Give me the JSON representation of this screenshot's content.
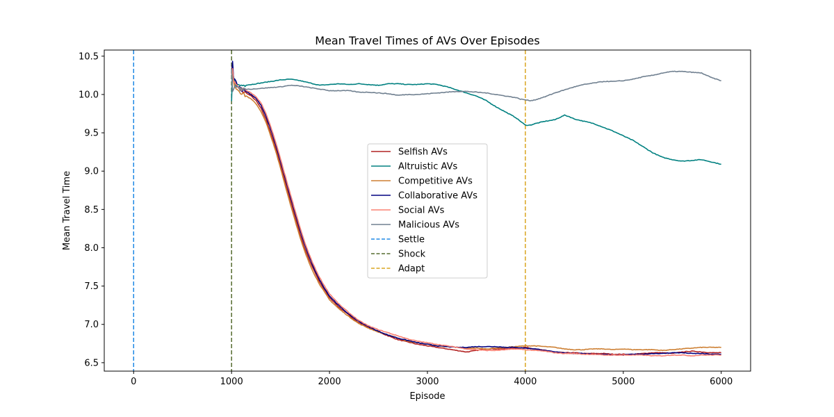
{
  "chart_data": {
    "type": "line",
    "title": "Mean Travel Times of AVs Over Episodes",
    "xlabel": "Episode",
    "ylabel": "Mean Travel Time",
    "xlim": [
      -300,
      6300
    ],
    "ylim": [
      6.39,
      10.58
    ],
    "xticks": [
      0,
      1000,
      2000,
      3000,
      4000,
      5000,
      6000
    ],
    "xtick_labels": [
      "0",
      "1000",
      "2000",
      "3000",
      "4000",
      "5000",
      "6000"
    ],
    "yticks": [
      6.5,
      7.0,
      7.5,
      8.0,
      8.5,
      9.0,
      9.5,
      10.0,
      10.5
    ],
    "ytick_labels": [
      "6.5",
      "7.0",
      "7.5",
      "8.0",
      "8.5",
      "9.0",
      "9.5",
      "10.0",
      "10.5"
    ],
    "grid": false,
    "legend_position": "center",
    "series": [
      {
        "name": "Selfish AVs",
        "color": "#b22222",
        "x": [
          1000,
          1010,
          1020,
          1040,
          1060,
          1080,
          1100,
          1150,
          1200,
          1250,
          1300,
          1350,
          1400,
          1450,
          1500,
          1550,
          1600,
          1650,
          1700,
          1750,
          1800,
          1850,
          1900,
          1950,
          2000,
          2100,
          2200,
          2300,
          2400,
          2500,
          2600,
          2700,
          2800,
          2900,
          3000,
          3100,
          3200,
          3300,
          3400,
          3500,
          3600,
          3700,
          3800,
          3900,
          4000,
          4100,
          4200,
          4300,
          4400,
          4500,
          4600,
          4700,
          4800,
          4900,
          5000,
          5100,
          5200,
          5300,
          5400,
          5500,
          5600,
          5700,
          5800,
          5900,
          6000
        ],
        "y": [
          10.3,
          10.4,
          10.2,
          10.15,
          10.1,
          10.08,
          10.05,
          10.02,
          9.98,
          9.92,
          9.82,
          9.68,
          9.5,
          9.3,
          9.08,
          8.85,
          8.62,
          8.4,
          8.18,
          7.98,
          7.82,
          7.68,
          7.55,
          7.45,
          7.35,
          7.22,
          7.12,
          7.02,
          6.96,
          6.9,
          6.85,
          6.8,
          6.77,
          6.74,
          6.72,
          6.7,
          6.68,
          6.66,
          6.64,
          6.66,
          6.68,
          6.68,
          6.68,
          6.69,
          6.7,
          6.68,
          6.66,
          6.64,
          6.63,
          6.63,
          6.62,
          6.62,
          6.62,
          6.61,
          6.61,
          6.61,
          6.62,
          6.63,
          6.63,
          6.62,
          6.64,
          6.65,
          6.64,
          6.63,
          6.63
        ]
      },
      {
        "name": "Altruistic AVs",
        "color": "#008080",
        "x": [
          1000,
          1010,
          1030,
          1060,
          1100,
          1200,
          1300,
          1400,
          1500,
          1600,
          1700,
          1800,
          1900,
          2000,
          2100,
          2200,
          2300,
          2400,
          2500,
          2600,
          2700,
          2800,
          2900,
          3000,
          3100,
          3200,
          3300,
          3400,
          3500,
          3600,
          3700,
          3800,
          3900,
          4000,
          4050,
          4100,
          4200,
          4300,
          4350,
          4400,
          4450,
          4500,
          4600,
          4700,
          4800,
          4900,
          5000,
          5100,
          5200,
          5300,
          5400,
          5500,
          5600,
          5700,
          5800,
          5900,
          6000
        ],
        "y": [
          9.9,
          10.3,
          10.15,
          10.12,
          10.12,
          10.13,
          10.15,
          10.17,
          10.19,
          10.2,
          10.18,
          10.15,
          10.12,
          10.13,
          10.14,
          10.13,
          10.14,
          10.13,
          10.12,
          10.14,
          10.14,
          10.13,
          10.13,
          10.14,
          10.13,
          10.1,
          10.06,
          10.02,
          9.98,
          9.92,
          9.84,
          9.77,
          9.7,
          9.6,
          9.6,
          9.62,
          9.65,
          9.67,
          9.7,
          9.73,
          9.71,
          9.68,
          9.65,
          9.62,
          9.57,
          9.52,
          9.46,
          9.4,
          9.32,
          9.24,
          9.18,
          9.15,
          9.13,
          9.14,
          9.15,
          9.12,
          9.09
        ]
      },
      {
        "name": "Competitive AVs",
        "color": "#cd7f32",
        "x": [
          1000,
          1010,
          1020,
          1040,
          1060,
          1080,
          1100,
          1150,
          1200,
          1250,
          1300,
          1350,
          1400,
          1450,
          1500,
          1550,
          1600,
          1650,
          1700,
          1750,
          1800,
          1850,
          1900,
          1950,
          2000,
          2100,
          2200,
          2300,
          2400,
          2500,
          2600,
          2700,
          2800,
          2900,
          3000,
          3100,
          3200,
          3300,
          3400,
          3500,
          3600,
          3700,
          3800,
          3900,
          4000,
          4100,
          4200,
          4300,
          4400,
          4500,
          4600,
          4700,
          4800,
          4900,
          5000,
          5100,
          5200,
          5300,
          5400,
          5500,
          5600,
          5700,
          5800,
          5900,
          6000
        ],
        "y": [
          10.32,
          10.38,
          10.15,
          10.1,
          10.07,
          10.05,
          10.02,
          9.98,
          9.94,
          9.88,
          9.78,
          9.64,
          9.46,
          9.26,
          9.04,
          8.8,
          8.57,
          8.35,
          8.13,
          7.94,
          7.78,
          7.64,
          7.52,
          7.42,
          7.32,
          7.2,
          7.1,
          7.01,
          6.95,
          6.9,
          6.86,
          6.82,
          6.78,
          6.76,
          6.74,
          6.72,
          6.71,
          6.7,
          6.69,
          6.69,
          6.68,
          6.69,
          6.7,
          6.71,
          6.72,
          6.72,
          6.71,
          6.7,
          6.68,
          6.67,
          6.67,
          6.68,
          6.68,
          6.67,
          6.68,
          6.67,
          6.67,
          6.67,
          6.66,
          6.67,
          6.68,
          6.69,
          6.7,
          6.7,
          6.7
        ]
      },
      {
        "name": "Collaborative AVs",
        "color": "#000080",
        "x": [
          1000,
          1010,
          1020,
          1040,
          1060,
          1080,
          1100,
          1150,
          1200,
          1250,
          1300,
          1350,
          1400,
          1450,
          1500,
          1550,
          1600,
          1650,
          1700,
          1750,
          1800,
          1850,
          1900,
          1950,
          2000,
          2100,
          2200,
          2300,
          2400,
          2500,
          2600,
          2700,
          2800,
          2900,
          3000,
          3100,
          3200,
          3300,
          3400,
          3500,
          3600,
          3700,
          3800,
          3900,
          4000,
          4100,
          4200,
          4300,
          4400,
          4500,
          4600,
          4700,
          4800,
          4900,
          5000,
          5100,
          5200,
          5300,
          5400,
          5500,
          5600,
          5700,
          5800,
          5900,
          6000
        ],
        "y": [
          10.28,
          10.42,
          10.22,
          10.17,
          10.13,
          10.1,
          10.07,
          10.04,
          10.0,
          9.95,
          9.86,
          9.72,
          9.55,
          9.35,
          9.13,
          8.9,
          8.67,
          8.45,
          8.23,
          8.03,
          7.86,
          7.71,
          7.58,
          7.47,
          7.37,
          7.24,
          7.13,
          7.04,
          6.97,
          6.91,
          6.86,
          6.82,
          6.79,
          6.76,
          6.74,
          6.72,
          6.71,
          6.7,
          6.7,
          6.71,
          6.71,
          6.71,
          6.7,
          6.7,
          6.69,
          6.68,
          6.66,
          6.64,
          6.63,
          6.62,
          6.62,
          6.61,
          6.61,
          6.6,
          6.6,
          6.61,
          6.61,
          6.62,
          6.62,
          6.63,
          6.63,
          6.62,
          6.62,
          6.61,
          6.61
        ]
      },
      {
        "name": "Social AVs",
        "color": "#fa8072",
        "x": [
          1000,
          1010,
          1020,
          1040,
          1060,
          1080,
          1100,
          1150,
          1200,
          1250,
          1300,
          1350,
          1400,
          1450,
          1500,
          1550,
          1600,
          1650,
          1700,
          1750,
          1800,
          1850,
          1900,
          1950,
          2000,
          2100,
          2200,
          2300,
          2400,
          2500,
          2600,
          2700,
          2800,
          2900,
          3000,
          3100,
          3200,
          3300,
          3400,
          3500,
          3600,
          3700,
          3800,
          3900,
          4000,
          4100,
          4200,
          4300,
          4400,
          4500,
          4600,
          4700,
          4800,
          4900,
          5000,
          5100,
          5200,
          5300,
          5400,
          5500,
          5600,
          5700,
          5800,
          5900,
          6000
        ],
        "y": [
          10.25,
          10.35,
          10.18,
          10.13,
          10.1,
          10.09,
          10.07,
          10.05,
          10.02,
          9.97,
          9.89,
          9.76,
          9.58,
          9.38,
          9.16,
          8.93,
          8.7,
          8.48,
          8.26,
          8.06,
          7.89,
          7.74,
          7.61,
          7.5,
          7.4,
          7.26,
          7.15,
          7.05,
          6.98,
          6.93,
          6.89,
          6.85,
          6.81,
          6.78,
          6.76,
          6.74,
          6.72,
          6.7,
          6.68,
          6.67,
          6.66,
          6.66,
          6.67,
          6.68,
          6.67,
          6.66,
          6.65,
          6.63,
          6.62,
          6.62,
          6.61,
          6.61,
          6.6,
          6.6,
          6.6,
          6.6,
          6.6,
          6.59,
          6.59,
          6.6,
          6.6,
          6.59,
          6.6,
          6.6,
          6.6
        ]
      },
      {
        "name": "Malicious AVs",
        "color": "#708090",
        "x": [
          1000,
          1010,
          1030,
          1060,
          1100,
          1200,
          1300,
          1400,
          1500,
          1600,
          1700,
          1800,
          1900,
          2000,
          2100,
          2200,
          2300,
          2400,
          2500,
          2600,
          2700,
          2800,
          2900,
          3000,
          3100,
          3200,
          3300,
          3400,
          3500,
          3600,
          3700,
          3800,
          3900,
          3950,
          4000,
          4050,
          4100,
          4200,
          4300,
          4400,
          4500,
          4600,
          4700,
          4800,
          4900,
          5000,
          5100,
          5200,
          5300,
          5400,
          5500,
          5600,
          5700,
          5800,
          5900,
          6000
        ],
        "y": [
          10.35,
          10.05,
          10.12,
          10.08,
          10.07,
          10.07,
          10.08,
          10.09,
          10.1,
          10.12,
          10.11,
          10.09,
          10.07,
          10.05,
          10.05,
          10.05,
          10.03,
          10.03,
          10.02,
          10.01,
          9.99,
          10.0,
          10.0,
          10.01,
          10.02,
          10.03,
          10.04,
          10.04,
          10.03,
          10.02,
          10.0,
          9.98,
          9.96,
          9.94,
          9.93,
          9.92,
          9.93,
          9.97,
          10.02,
          10.06,
          10.1,
          10.13,
          10.15,
          10.17,
          10.17,
          10.18,
          10.2,
          10.23,
          10.25,
          10.28,
          10.3,
          10.3,
          10.29,
          10.28,
          10.22,
          10.18
        ]
      }
    ],
    "vlines": [
      {
        "name": "Settle",
        "x": 0,
        "color": "#1e88e5",
        "style": "dashed"
      },
      {
        "name": "Shock",
        "x": 1000,
        "color": "#556b2f",
        "style": "dashed"
      },
      {
        "name": "Adapt",
        "x": 4000,
        "color": "#daa520",
        "style": "dashed"
      }
    ]
  }
}
